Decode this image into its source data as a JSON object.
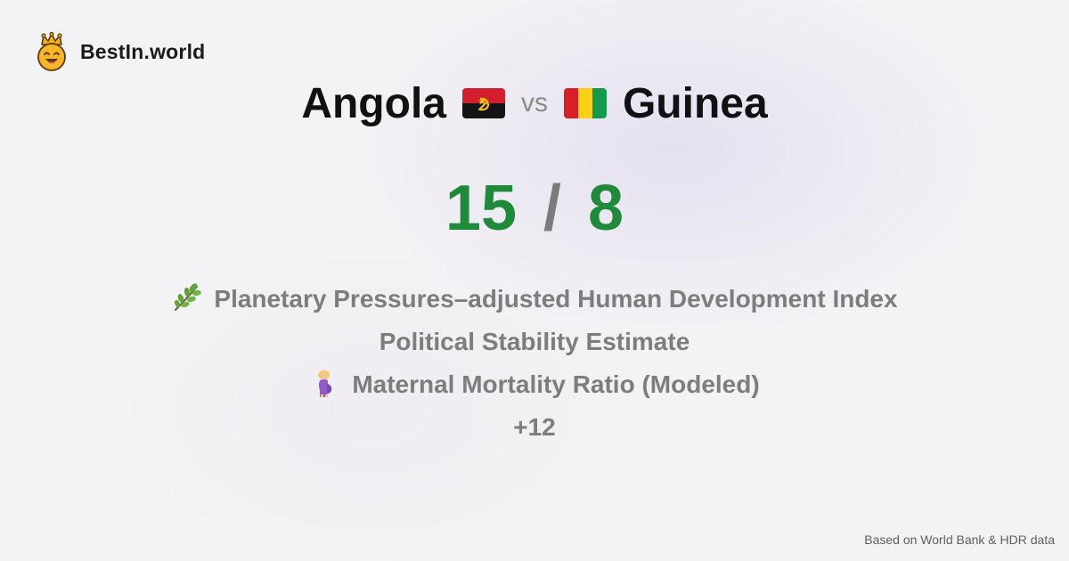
{
  "brand": {
    "name": "BestIn.world",
    "logo_icon": "crowned-smiley-icon"
  },
  "comparison": {
    "left_country": "Angola",
    "left_flag_icon": "angola-flag-icon",
    "vs_label": "vs",
    "right_country": "Guinea",
    "right_flag_icon": "guinea-flag-icon"
  },
  "score": {
    "left": "15",
    "separator": "/",
    "right": "8",
    "color": "#1f8b3a"
  },
  "metrics": [
    {
      "label": "Planetary Pressures–adjusted Human Development Index",
      "icon": "herb-icon"
    },
    {
      "label": "Political Stability Estimate",
      "icon": ""
    },
    {
      "label": "Maternal Mortality Ratio (Modeled)",
      "icon": "pregnant-woman-icon"
    }
  ],
  "more_label": "+12",
  "footer": {
    "source": "Based on World Bank & HDR data"
  }
}
